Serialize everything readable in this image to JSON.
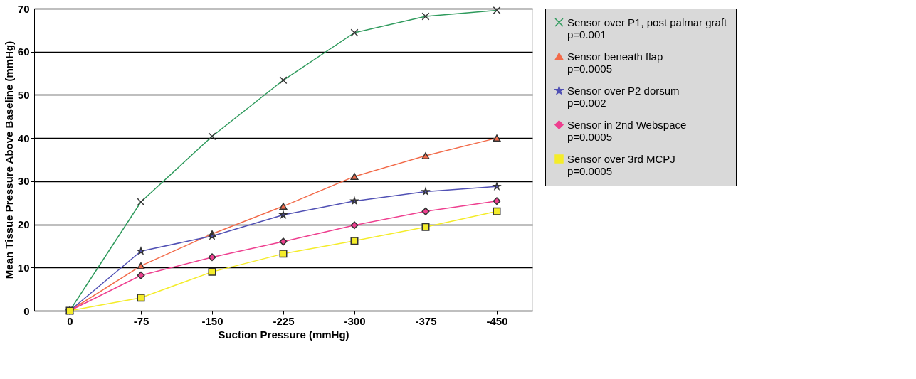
{
  "chart_data": {
    "type": "line",
    "xlabel": "Suction Pressure (mmHg)",
    "ylabel": "Mean Tissue Pressure Above Baseline (mmHg)",
    "categories": [
      "0",
      "-75",
      "-150",
      "-225",
      "-300",
      "-375",
      "-450"
    ],
    "ylim": [
      0,
      70
    ],
    "yticks": [
      0,
      10,
      20,
      30,
      40,
      50,
      60,
      70
    ],
    "grid": "y",
    "legend": "right",
    "series": [
      {
        "name": "Sensor over P1, post palmar graft",
        "color": "#2e9a5c",
        "marker": "cross",
        "values": [
          0,
          25.2,
          40.4,
          53.4,
          64.4,
          68.2,
          69.6
        ]
      },
      {
        "name": "Sensor beneath flap",
        "color": "#f26b4a",
        "marker": "triangle",
        "values": [
          0,
          10.4,
          17.8,
          24.2,
          31.1,
          35.9,
          40
        ]
      },
      {
        "name": "Sensor over P2 dorsum",
        "color": "#5050b4",
        "marker": "star",
        "values": [
          0,
          13.8,
          17.3,
          22.2,
          25.4,
          27.6,
          28.8
        ]
      },
      {
        "name": "Sensor in 2nd Webspace",
        "color": "#ee3f8f",
        "marker": "diamond",
        "values": [
          0,
          8.2,
          12.4,
          16,
          19.8,
          23,
          25.4
        ]
      },
      {
        "name": "Sensor over 3rd MCPJ",
        "color": "#f4ec2a",
        "marker": "square",
        "values": [
          0,
          3,
          9,
          13.2,
          16.2,
          19.4,
          23
        ]
      }
    ],
    "annotations": [
      "p=0.001",
      "p=0.0005",
      "p=0.002",
      "p=0.0005",
      "p=0.0005"
    ]
  }
}
